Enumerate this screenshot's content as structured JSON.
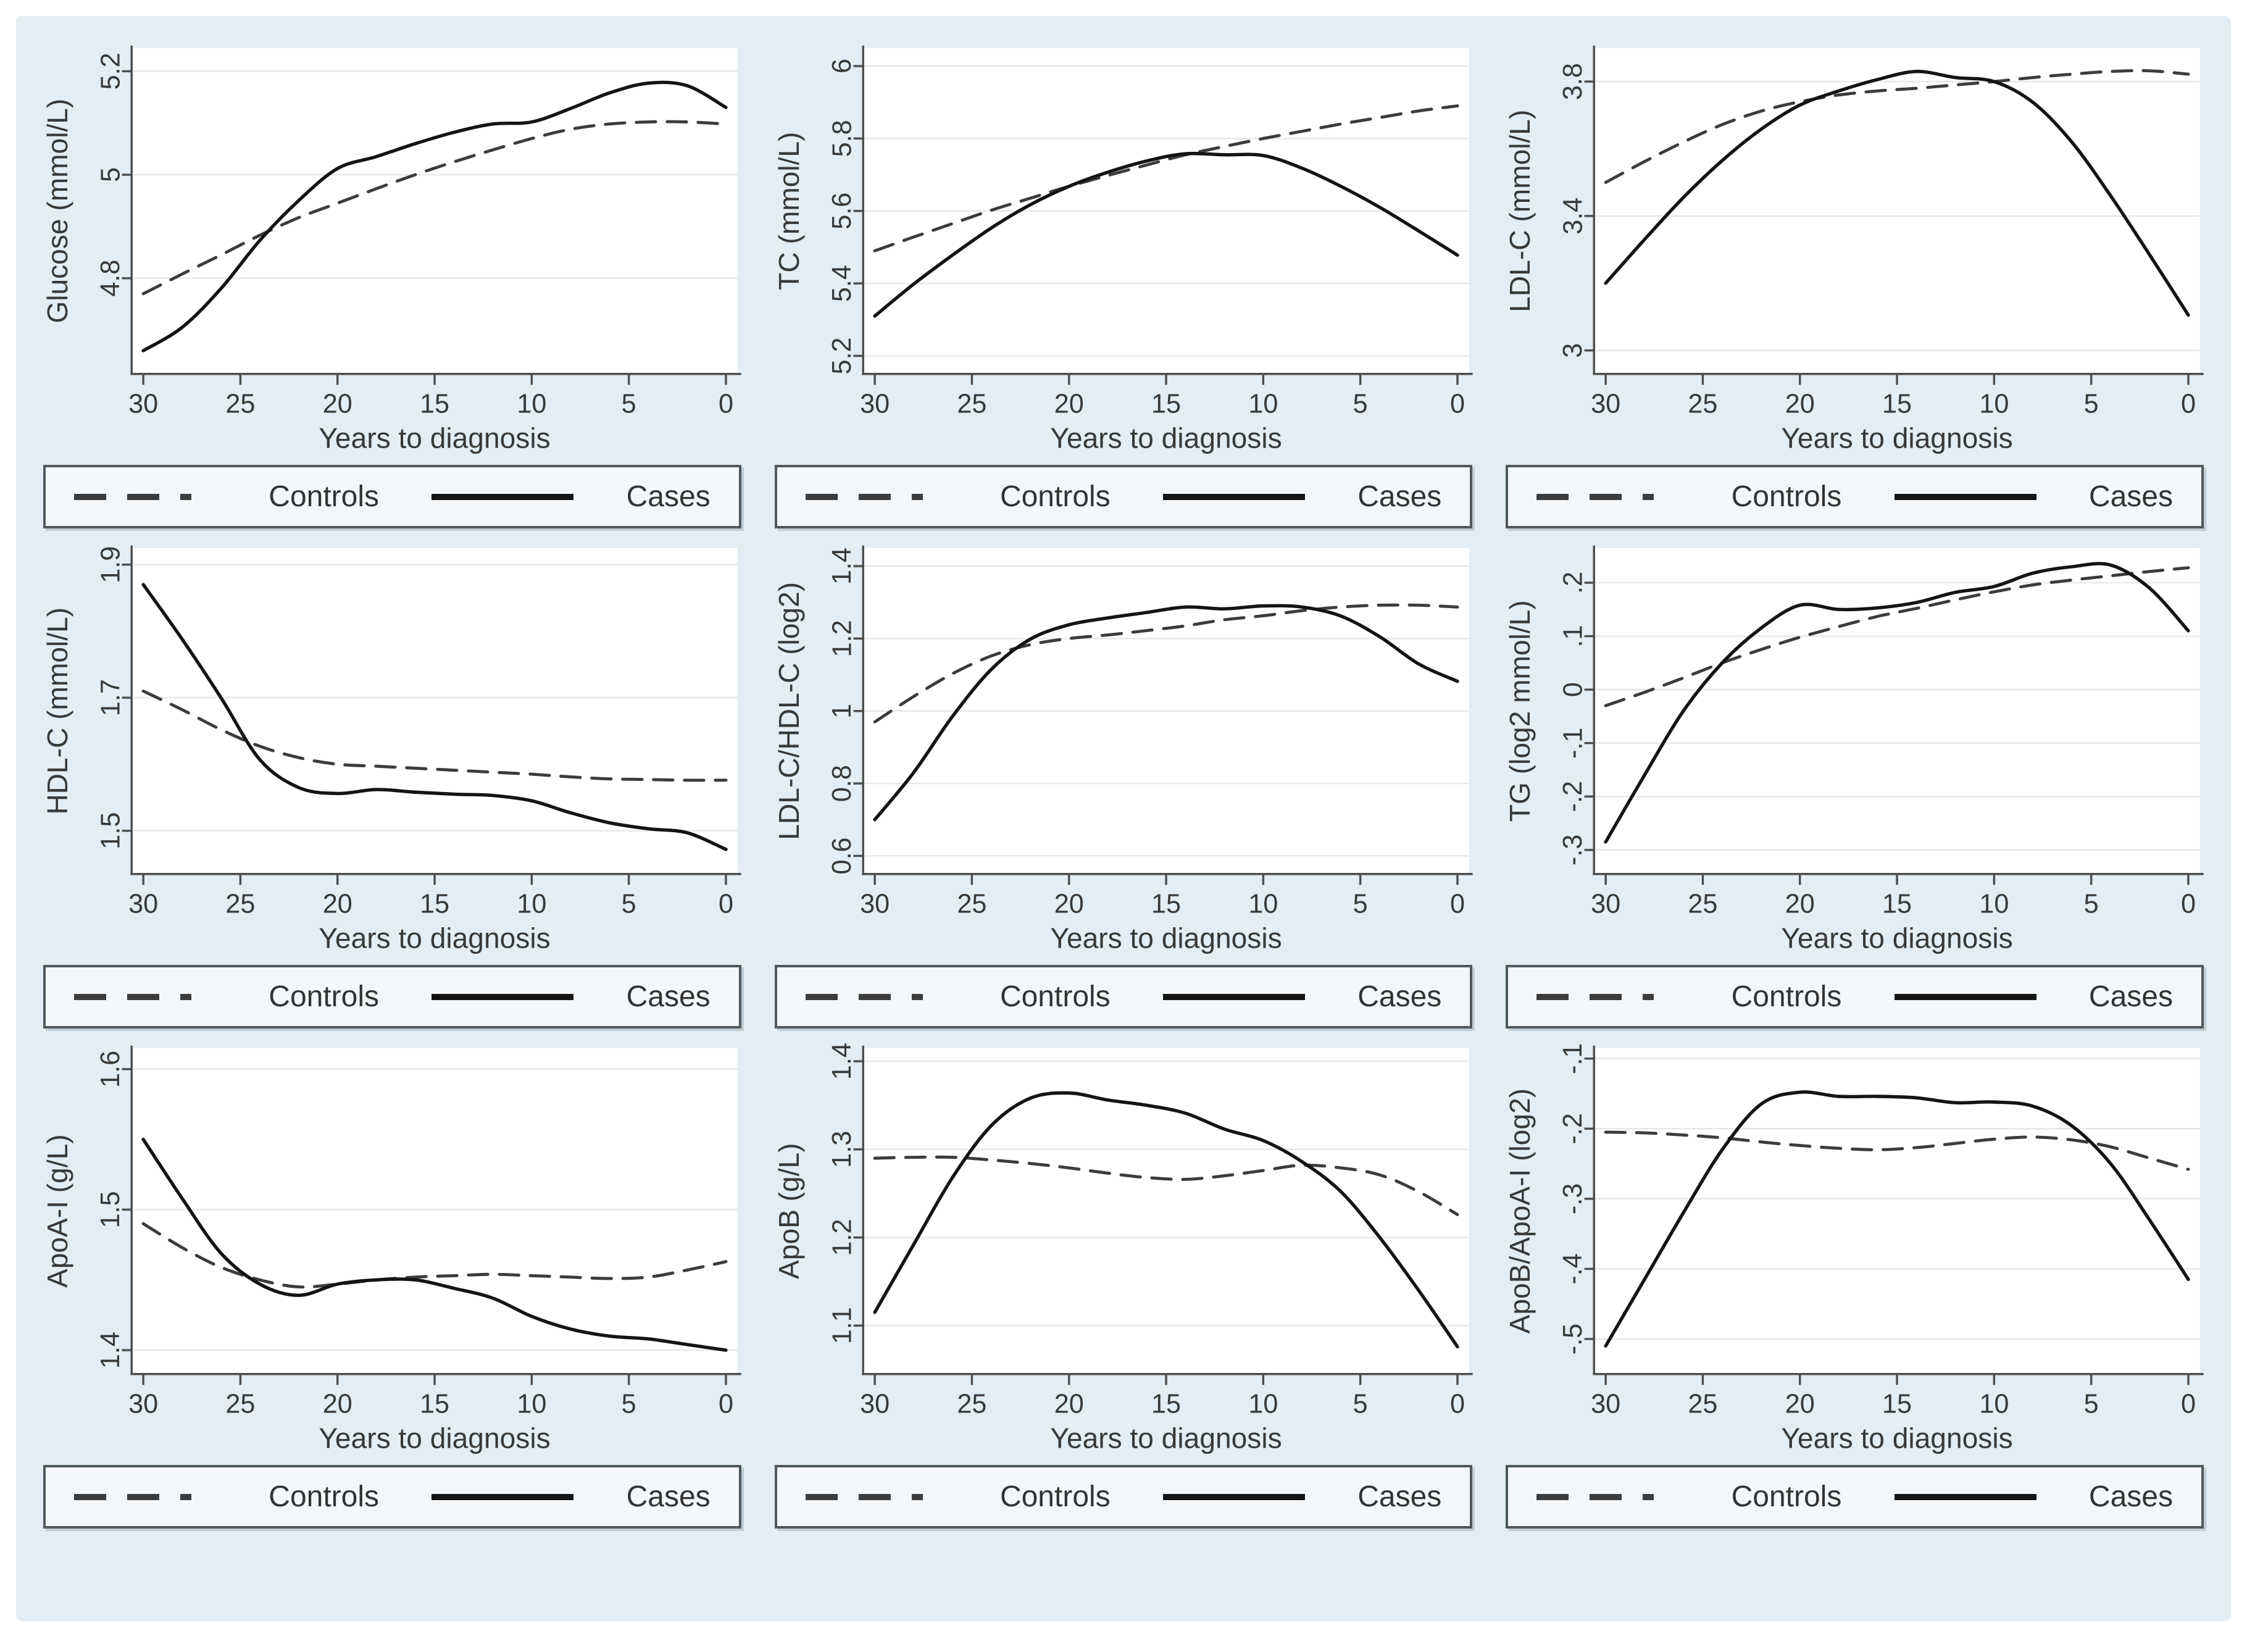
{
  "figure": {
    "x_title": "Years to diagnosis",
    "x_ticks": [
      30,
      25,
      20,
      15,
      10,
      5,
      0
    ],
    "x_range": [
      30.6,
      -0.6
    ],
    "legend": {
      "controls_label": "Controls",
      "cases_label": "Cases"
    },
    "colors": {
      "background": "#e3edf3",
      "plot_background": "#ffffff",
      "grid": "#e4e9ec",
      "axis": "#4d4d4d",
      "controls_line": "#3c3c3c",
      "cases_line": "#141414",
      "legend_background": "#f3f7f9",
      "legend_border": "#50585c"
    }
  },
  "chart_data": [
    {
      "type": "line",
      "ylabel": "Glucose (mmol/L)",
      "xlabel": "Years to diagnosis",
      "ylim": [
        4.615,
        5.245
      ],
      "ytick_values": [
        4.8,
        5.0,
        5.2
      ],
      "ytick_labels": [
        "4.8",
        "5",
        "5.2"
      ],
      "x": [
        30,
        28,
        26,
        24,
        22,
        20,
        18,
        16,
        14,
        12,
        10,
        8,
        6,
        4,
        2,
        0
      ],
      "legend": [
        "Controls",
        "Cases"
      ],
      "series": [
        {
          "name": "Controls",
          "style": "dashed",
          "values": [
            4.77,
            4.808,
            4.845,
            4.883,
            4.917,
            4.945,
            4.973,
            5.0,
            5.025,
            5.048,
            5.07,
            5.088,
            5.098,
            5.102,
            5.102,
            5.098
          ]
        },
        {
          "name": "Cases",
          "style": "solid",
          "values": [
            4.66,
            4.705,
            4.78,
            4.873,
            4.95,
            5.012,
            5.035,
            5.06,
            5.082,
            5.098,
            5.102,
            5.128,
            5.158,
            5.177,
            5.172,
            5.13
          ]
        }
      ]
    },
    {
      "type": "line",
      "ylabel": "TC (mmol/L)",
      "xlabel": "Years to diagnosis",
      "ylim": [
        5.15,
        6.05
      ],
      "ytick_values": [
        5.2,
        5.4,
        5.6,
        5.8,
        6.0
      ],
      "ytick_labels": [
        "5.2",
        "5.4",
        "5.6",
        "5.8",
        "6"
      ],
      "x": [
        30,
        28,
        26,
        24,
        22,
        20,
        18,
        16,
        14,
        12,
        10,
        8,
        6,
        4,
        2,
        0
      ],
      "legend": [
        "Controls",
        "Cases"
      ],
      "series": [
        {
          "name": "Controls",
          "style": "dashed",
          "values": [
            5.49,
            5.528,
            5.565,
            5.602,
            5.635,
            5.668,
            5.698,
            5.727,
            5.755,
            5.778,
            5.8,
            5.82,
            5.84,
            5.858,
            5.876,
            5.89
          ]
        },
        {
          "name": "Cases",
          "style": "solid",
          "values": [
            5.31,
            5.398,
            5.478,
            5.553,
            5.617,
            5.668,
            5.707,
            5.738,
            5.758,
            5.755,
            5.753,
            5.718,
            5.668,
            5.61,
            5.545,
            5.478
          ]
        }
      ]
    },
    {
      "type": "line",
      "ylabel": "LDL-C (mmol/L)",
      "xlabel": "Years to diagnosis",
      "ylim": [
        2.93,
        3.9
      ],
      "ytick_values": [
        3.0,
        3.4,
        3.8
      ],
      "ytick_labels": [
        "3",
        "3.4",
        "3.8"
      ],
      "x": [
        30,
        28,
        26,
        24,
        22,
        20,
        18,
        16,
        14,
        12,
        10,
        8,
        6,
        4,
        2,
        0
      ],
      "legend": [
        "Controls",
        "Cases"
      ],
      "series": [
        {
          "name": "Controls",
          "style": "dashed",
          "values": [
            3.5,
            3.562,
            3.62,
            3.672,
            3.712,
            3.74,
            3.76,
            3.772,
            3.78,
            3.79,
            3.8,
            3.812,
            3.822,
            3.83,
            3.832,
            3.822
          ]
        },
        {
          "name": "Cases",
          "style": "solid",
          "values": [
            3.2,
            3.33,
            3.455,
            3.565,
            3.658,
            3.73,
            3.772,
            3.806,
            3.83,
            3.812,
            3.8,
            3.738,
            3.62,
            3.46,
            3.285,
            3.105
          ]
        }
      ]
    },
    {
      "type": "line",
      "ylabel": "HDL-C (mmol/L)",
      "xlabel": "Years to diagnosis",
      "ylim": [
        1.435,
        1.925
      ],
      "ytick_values": [
        1.5,
        1.7,
        1.9
      ],
      "ytick_labels": [
        "1.5",
        "1.7",
        "1.9"
      ],
      "x": [
        30,
        28,
        26,
        24,
        22,
        20,
        18,
        16,
        14,
        12,
        10,
        8,
        6,
        4,
        2,
        0
      ],
      "legend": [
        "Controls",
        "Cases"
      ],
      "series": [
        {
          "name": "Controls",
          "style": "dashed",
          "values": [
            1.71,
            1.682,
            1.652,
            1.627,
            1.61,
            1.6,
            1.597,
            1.594,
            1.591,
            1.588,
            1.585,
            1.581,
            1.578,
            1.577,
            1.576,
            1.576
          ]
        },
        {
          "name": "Cases",
          "style": "solid",
          "values": [
            1.87,
            1.788,
            1.7,
            1.607,
            1.565,
            1.556,
            1.562,
            1.558,
            1.555,
            1.553,
            1.545,
            1.527,
            1.512,
            1.503,
            1.497,
            1.472
          ]
        }
      ]
    },
    {
      "type": "line",
      "ylabel": "LDL-C/HDL-C (log2)",
      "xlabel": "Years to diagnosis",
      "ylim": [
        0.55,
        1.45
      ],
      "ytick_values": [
        0.6,
        0.8,
        1.0,
        1.2,
        1.4
      ],
      "ytick_labels": [
        "0.6",
        "0.8",
        "1",
        "1.2",
        "1.4"
      ],
      "x": [
        30,
        28,
        26,
        24,
        22,
        20,
        18,
        16,
        14,
        12,
        10,
        8,
        6,
        4,
        2,
        0
      ],
      "legend": [
        "Controls",
        "Cases"
      ],
      "series": [
        {
          "name": "Controls",
          "style": "dashed",
          "values": [
            0.97,
            1.04,
            1.103,
            1.152,
            1.183,
            1.2,
            1.21,
            1.222,
            1.235,
            1.252,
            1.263,
            1.277,
            1.287,
            1.292,
            1.292,
            1.287
          ]
        },
        {
          "name": "Cases",
          "style": "solid",
          "values": [
            0.7,
            0.83,
            0.985,
            1.115,
            1.198,
            1.238,
            1.257,
            1.272,
            1.287,
            1.282,
            1.29,
            1.287,
            1.262,
            1.205,
            1.13,
            1.082
          ]
        }
      ]
    },
    {
      "type": "line",
      "ylabel": "TG (log2 mmol/L)",
      "xlabel": "Years to diagnosis",
      "ylim": [
        -0.345,
        0.265
      ],
      "ytick_values": [
        -0.3,
        -0.2,
        -0.1,
        0.0,
        0.1,
        0.2
      ],
      "ytick_labels": [
        "-.3",
        "-.2",
        "-.1",
        "0",
        ".1",
        ".2"
      ],
      "x": [
        30,
        28,
        26,
        24,
        22,
        20,
        18,
        16,
        14,
        12,
        10,
        8,
        6,
        4,
        2,
        0
      ],
      "legend": [
        "Controls",
        "Cases"
      ],
      "series": [
        {
          "name": "Controls",
          "style": "dashed",
          "values": [
            -0.03,
            -0.005,
            0.022,
            0.05,
            0.075,
            0.098,
            0.118,
            0.137,
            0.152,
            0.168,
            0.183,
            0.196,
            0.205,
            0.213,
            0.221,
            0.228
          ]
        },
        {
          "name": "Cases",
          "style": "solid",
          "values": [
            -0.285,
            -0.16,
            -0.04,
            0.05,
            0.115,
            0.158,
            0.15,
            0.153,
            0.163,
            0.182,
            0.193,
            0.218,
            0.23,
            0.233,
            0.19,
            0.11
          ]
        }
      ]
    },
    {
      "type": "line",
      "ylabel": "ApoA-I (g/L)",
      "xlabel": "Years to diagnosis",
      "ylim": [
        1.383,
        1.615
      ],
      "ytick_values": [
        1.4,
        1.5,
        1.6
      ],
      "ytick_labels": [
        "1.4",
        "1.5",
        "1.6"
      ],
      "x": [
        30,
        28,
        26,
        24,
        22,
        20,
        18,
        16,
        14,
        12,
        10,
        8,
        6,
        4,
        2,
        0
      ],
      "legend": [
        "Controls",
        "Cases"
      ],
      "series": [
        {
          "name": "Controls",
          "style": "dashed",
          "values": [
            1.49,
            1.473,
            1.459,
            1.45,
            1.445,
            1.447,
            1.45,
            1.452,
            1.453,
            1.454,
            1.453,
            1.452,
            1.451,
            1.452,
            1.457,
            1.463
          ]
        },
        {
          "name": "Cases",
          "style": "solid",
          "values": [
            1.55,
            1.508,
            1.469,
            1.447,
            1.439,
            1.447,
            1.45,
            1.45,
            1.444,
            1.437,
            1.424,
            1.415,
            1.41,
            1.408,
            1.404,
            1.4
          ]
        }
      ]
    },
    {
      "type": "line",
      "ylabel": "ApoB (g/L)",
      "xlabel": "Years to diagnosis",
      "ylim": [
        1.045,
        1.415
      ],
      "ytick_values": [
        1.1,
        1.2,
        1.3,
        1.4
      ],
      "ytick_labels": [
        "1.1",
        "1.2",
        "1.3",
        "1.4"
      ],
      "x": [
        30,
        28,
        26,
        24,
        22,
        20,
        18,
        16,
        14,
        12,
        10,
        8,
        6,
        4,
        2,
        0
      ],
      "legend": [
        "Controls",
        "Cases"
      ],
      "series": [
        {
          "name": "Controls",
          "style": "dashed",
          "values": [
            1.29,
            1.291,
            1.291,
            1.288,
            1.284,
            1.279,
            1.273,
            1.268,
            1.266,
            1.27,
            1.276,
            1.282,
            1.279,
            1.271,
            1.252,
            1.226
          ]
        },
        {
          "name": "Cases",
          "style": "solid",
          "values": [
            1.115,
            1.192,
            1.268,
            1.327,
            1.358,
            1.364,
            1.356,
            1.35,
            1.341,
            1.323,
            1.31,
            1.286,
            1.252,
            1.2,
            1.14,
            1.076
          ]
        }
      ]
    },
    {
      "type": "line",
      "ylabel": "ApoB/ApoA-I (log2)",
      "xlabel": "Years to diagnosis",
      "ylim": [
        -0.55,
        -0.085
      ],
      "ytick_values": [
        -0.5,
        -0.4,
        -0.3,
        -0.2,
        -0.1
      ],
      "ytick_labels": [
        "-.5",
        "-.4",
        "-.3",
        "-.2",
        "-.1"
      ],
      "x": [
        30,
        28,
        26,
        24,
        22,
        20,
        18,
        16,
        14,
        12,
        10,
        8,
        6,
        4,
        2,
        0
      ],
      "legend": [
        "Controls",
        "Cases"
      ],
      "series": [
        {
          "name": "Controls",
          "style": "dashed",
          "values": [
            -0.205,
            -0.206,
            -0.209,
            -0.213,
            -0.219,
            -0.224,
            -0.228,
            -0.23,
            -0.227,
            -0.221,
            -0.215,
            -0.212,
            -0.216,
            -0.226,
            -0.242,
            -0.258
          ]
        },
        {
          "name": "Cases",
          "style": "solid",
          "values": [
            -0.51,
            -0.415,
            -0.32,
            -0.23,
            -0.165,
            -0.148,
            -0.154,
            -0.154,
            -0.156,
            -0.163,
            -0.162,
            -0.168,
            -0.196,
            -0.25,
            -0.33,
            -0.415
          ]
        }
      ]
    }
  ]
}
